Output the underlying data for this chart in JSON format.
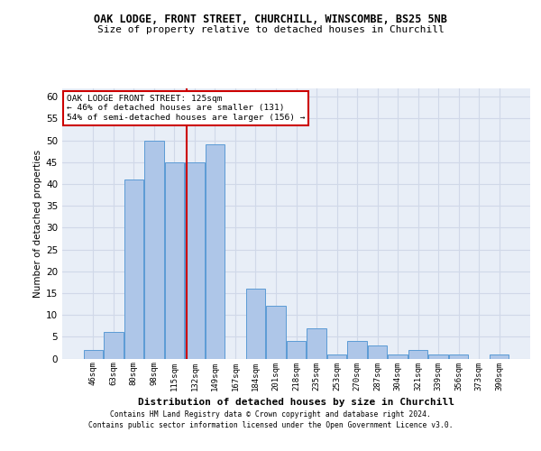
{
  "title1": "OAK LODGE, FRONT STREET, CHURCHILL, WINSCOMBE, BS25 5NB",
  "title2": "Size of property relative to detached houses in Churchill",
  "xlabel": "Distribution of detached houses by size in Churchill",
  "ylabel": "Number of detached properties",
  "categories": [
    "46sqm",
    "63sqm",
    "80sqm",
    "98sqm",
    "115sqm",
    "132sqm",
    "149sqm",
    "167sqm",
    "184sqm",
    "201sqm",
    "218sqm",
    "235sqm",
    "253sqm",
    "270sqm",
    "287sqm",
    "304sqm",
    "321sqm",
    "339sqm",
    "356sqm",
    "373sqm",
    "390sqm"
  ],
  "values": [
    2,
    6,
    41,
    50,
    45,
    45,
    49,
    0,
    16,
    12,
    4,
    7,
    1,
    4,
    3,
    1,
    2,
    1,
    1,
    0,
    1
  ],
  "bar_color": "#aec6e8",
  "bar_edge_color": "#5b9bd5",
  "grid_color": "#d0d8e8",
  "bg_color": "#e8eef7",
  "annotation_line1": "OAK LODGE FRONT STREET: 125sqm",
  "annotation_line2": "← 46% of detached houses are smaller (131)",
  "annotation_line3": "54% of semi-detached houses are larger (156) →",
  "annotation_box_color": "#ffffff",
  "annotation_box_edge": "#cc0000",
  "vline_color": "#cc0000",
  "footer1": "Contains HM Land Registry data © Crown copyright and database right 2024.",
  "footer2": "Contains public sector information licensed under the Open Government Licence v3.0.",
  "ylim": [
    0,
    62
  ],
  "yticks": [
    0,
    5,
    10,
    15,
    20,
    25,
    30,
    35,
    40,
    45,
    50,
    55,
    60
  ]
}
